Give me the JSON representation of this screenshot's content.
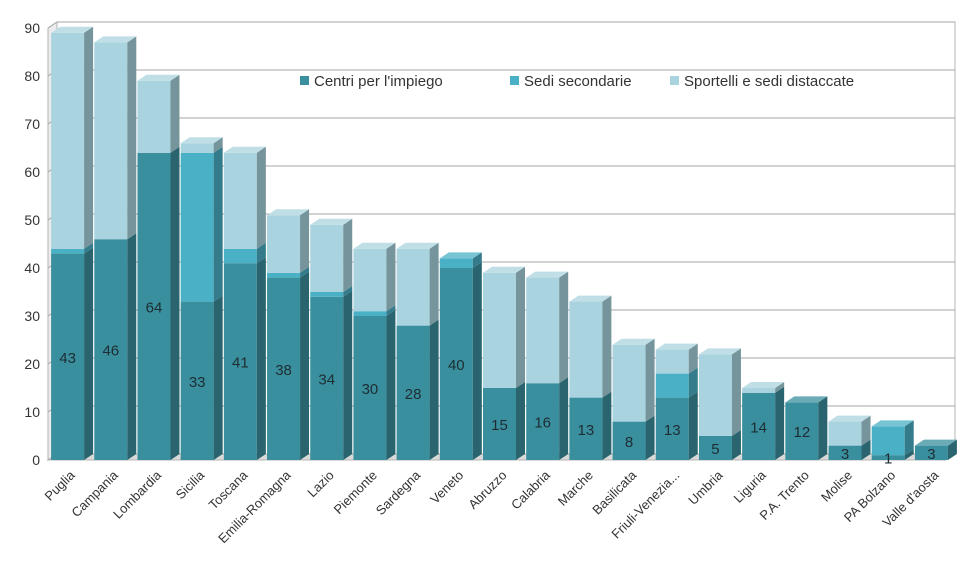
{
  "chart_data": {
    "type": "bar",
    "stacked": true,
    "three_d": true,
    "ylim": [
      0,
      90
    ],
    "yticks": [
      0,
      10,
      20,
      30,
      40,
      50,
      60,
      70,
      80,
      90
    ],
    "grid": true,
    "legend_position": "top-right",
    "categories": [
      "Puglia",
      "Campania",
      "Lombardia",
      "Sicilia",
      "Toscana",
      "Emilia-Romagna",
      "Lazio",
      "Piemonte",
      "Sardegna",
      "Veneto",
      "Abruzzo",
      "Calabria",
      "Marche",
      "Basilicata",
      "Friuli-Venezia...",
      "Umbria",
      "Liguria",
      "P.A. Trento",
      "Molise",
      "PA Bolzano",
      "Valle d'aosta"
    ],
    "series": [
      {
        "name": "Centri per l'impiego",
        "color": "#3a8f9e",
        "values": [
          43,
          46,
          64,
          33,
          41,
          38,
          34,
          30,
          28,
          40,
          15,
          16,
          13,
          8,
          13,
          5,
          14,
          12,
          3,
          1,
          3
        ],
        "labels": [
          "43",
          "46",
          "64",
          "33",
          "41",
          "38",
          "34",
          "30",
          "28",
          "40",
          "15",
          "16",
          "13",
          "8",
          "13",
          "5",
          "14",
          "12",
          "3",
          "1",
          "3"
        ]
      },
      {
        "name": "Sedi secondarie",
        "color": "#4ab0c6",
        "values": [
          1,
          0,
          0,
          31,
          3,
          1,
          1,
          1,
          0,
          2,
          0,
          0,
          0,
          0,
          5,
          0,
          0,
          0,
          0,
          6,
          0
        ]
      },
      {
        "name": "Sportelli e sedi distaccate",
        "color": "#a9d3de",
        "values": [
          45,
          41,
          15,
          2,
          20,
          12,
          14,
          13,
          16,
          0,
          24,
          22,
          20,
          16,
          5,
          17,
          1,
          0,
          5,
          0,
          0
        ]
      }
    ]
  }
}
